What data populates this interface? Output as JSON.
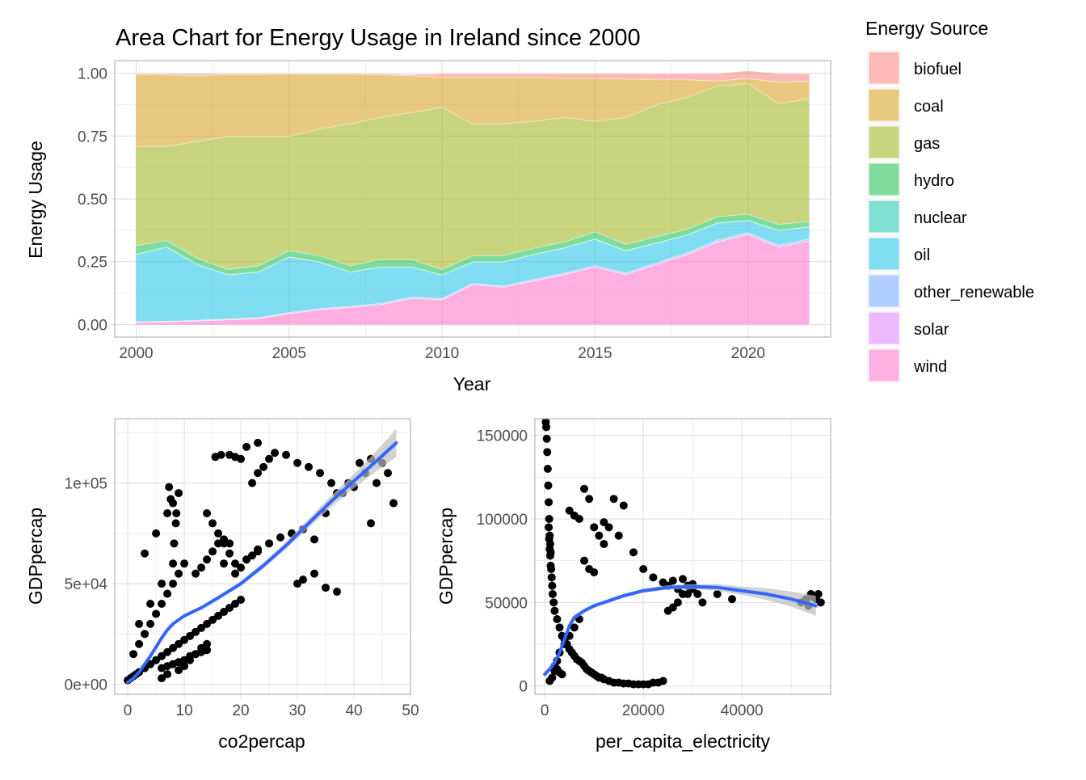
{
  "colors": {
    "panel_border": "#b3b3b3",
    "grid_major": "#dedede",
    "grid_minor": "#eeeeee",
    "tick_text": "#4d4d4d",
    "point": "#000000",
    "smooth_line": "#3366ff",
    "ribbon": "#bdbdbd"
  },
  "chart_data": [
    {
      "type": "area",
      "title": "Area Chart for Energy Usage in Ireland since 2000",
      "xlabel": "Year",
      "ylabel": "Energy Usage",
      "xlim": [
        1999.3,
        2022.7
      ],
      "ylim": [
        -0.05,
        1.05
      ],
      "x_ticks": [
        2000,
        2005,
        2010,
        2015,
        2020
      ],
      "x_tick_labels": [
        "2000",
        "2005",
        "2010",
        "2015",
        "2020"
      ],
      "y_ticks": [
        0,
        0.25,
        0.5,
        0.75,
        1.0
      ],
      "y_tick_labels": [
        "0.00",
        "0.25",
        "0.50",
        "0.75",
        "1.00"
      ],
      "stacked": true,
      "grid": true,
      "legend": {
        "title": "Energy Source",
        "placement": "right",
        "entries": [
          {
            "label": "biofuel",
            "color": "#f8766d"
          },
          {
            "label": "coal",
            "color": "#d39200"
          },
          {
            "label": "gas",
            "color": "#93aa00"
          },
          {
            "label": "hydro",
            "color": "#00ba38"
          },
          {
            "label": "nuclear",
            "color": "#00c19f"
          },
          {
            "label": "oil",
            "color": "#00b9e3"
          },
          {
            "label": "other_renewable",
            "color": "#619cff"
          },
          {
            "label": "solar",
            "color": "#db72fb"
          },
          {
            "label": "wind",
            "color": "#ff61c3"
          }
        ]
      },
      "x": [
        2000,
        2001,
        2002,
        2003,
        2004,
        2005,
        2006,
        2007,
        2008,
        2009,
        2010,
        2011,
        2012,
        2013,
        2014,
        2015,
        2016,
        2017,
        2018,
        2019,
        2020,
        2021,
        2022
      ],
      "series": [
        {
          "name": "wind",
          "color": "#ff61c3",
          "values": [
            0.01,
            0.012,
            0.015,
            0.02,
            0.025,
            0.045,
            0.06,
            0.07,
            0.08,
            0.105,
            0.1,
            0.16,
            0.15,
            0.175,
            0.2,
            0.23,
            0.2,
            0.24,
            0.28,
            0.33,
            0.36,
            0.31,
            0.335
          ]
        },
        {
          "name": "solar",
          "color": "#db72fb",
          "values": [
            0,
            0,
            0,
            0,
            0,
            0,
            0,
            0,
            0,
            0,
            0,
            0,
            0,
            0,
            0,
            0,
            0,
            0,
            0,
            0,
            0,
            0,
            0
          ]
        },
        {
          "name": "other_renewable",
          "color": "#619cff",
          "values": [
            0.002,
            0.002,
            0.003,
            0.003,
            0.003,
            0.004,
            0.004,
            0.004,
            0.005,
            0.005,
            0.005,
            0.005,
            0.005,
            0.005,
            0.006,
            0.006,
            0.006,
            0.006,
            0.007,
            0.007,
            0.007,
            0.007,
            0.007
          ]
        },
        {
          "name": "oil",
          "color": "#00b9e3",
          "values": [
            0.268,
            0.296,
            0.222,
            0.176,
            0.182,
            0.221,
            0.186,
            0.136,
            0.145,
            0.12,
            0.093,
            0.085,
            0.095,
            0.1,
            0.1,
            0.105,
            0.089,
            0.079,
            0.07,
            0.068,
            0.048,
            0.058,
            0.048
          ]
        },
        {
          "name": "nuclear",
          "color": "#00c19f",
          "values": [
            0,
            0,
            0,
            0,
            0,
            0,
            0,
            0,
            0,
            0,
            0,
            0,
            0,
            0,
            0,
            0,
            0,
            0,
            0,
            0,
            0,
            0,
            0
          ]
        },
        {
          "name": "hydro",
          "color": "#00ba38",
          "values": [
            0.035,
            0.025,
            0.025,
            0.021,
            0.025,
            0.025,
            0.025,
            0.025,
            0.03,
            0.03,
            0.022,
            0.025,
            0.025,
            0.025,
            0.024,
            0.029,
            0.025,
            0.025,
            0.023,
            0.025,
            0.025,
            0.025,
            0.02
          ]
        },
        {
          "name": "gas",
          "color": "#93aa00",
          "values": [
            0.395,
            0.375,
            0.465,
            0.53,
            0.515,
            0.455,
            0.505,
            0.565,
            0.565,
            0.585,
            0.645,
            0.525,
            0.525,
            0.505,
            0.495,
            0.44,
            0.505,
            0.525,
            0.525,
            0.52,
            0.52,
            0.48,
            0.49
          ]
        },
        {
          "name": "coal",
          "color": "#d39200",
          "values": [
            0.285,
            0.284,
            0.262,
            0.245,
            0.245,
            0.247,
            0.218,
            0.196,
            0.17,
            0.145,
            0.12,
            0.185,
            0.185,
            0.175,
            0.155,
            0.17,
            0.153,
            0.1,
            0.07,
            0.02,
            0.02,
            0.085,
            0.07
          ]
        },
        {
          "name": "biofuel",
          "color": "#f8766d",
          "values": [
            0.005,
            0.006,
            0.008,
            0.005,
            0.005,
            0.003,
            0.002,
            0.004,
            0.005,
            0.005,
            0.015,
            0.015,
            0.015,
            0.015,
            0.02,
            0.02,
            0.022,
            0.025,
            0.025,
            0.03,
            0.03,
            0.035,
            0.03
          ]
        }
      ]
    },
    {
      "type": "scatter",
      "xlabel": "co2percap",
      "ylabel": "GDPpercap",
      "xlim": [
        -2.3,
        50
      ],
      "ylim": [
        -5000,
        132000
      ],
      "x_ticks": [
        0,
        10,
        20,
        30,
        40,
        50
      ],
      "x_tick_labels": [
        "0",
        "10",
        "20",
        "30",
        "40",
        "50"
      ],
      "y_ticks": [
        0,
        50000,
        100000
      ],
      "y_tick_labels": [
        "0e+00",
        "5e+04",
        "1e+05"
      ],
      "grid": true,
      "smooth": {
        "x": [
          0,
          1,
          2,
          3,
          4,
          5,
          6,
          7,
          8,
          10,
          13,
          16,
          20,
          24,
          28,
          32,
          36,
          40,
          44,
          47.5
        ],
        "y": [
          1000,
          3000,
          6000,
          10000,
          14000,
          18500,
          23000,
          27000,
          30000,
          34000,
          38000,
          43000,
          50000,
          59000,
          69000,
          80000,
          91000,
          101000,
          111000,
          120000
        ],
        "se_halfwidth": [
          800,
          600,
          500,
          500,
          500,
          500,
          600,
          600,
          700,
          800,
          900,
          1000,
          1200,
          1500,
          1800,
          2200,
          2800,
          3500,
          5000,
          7000
        ]
      },
      "points": {
        "x": [
          0,
          0.5,
          1,
          1.5,
          2,
          3,
          4,
          5,
          6,
          7,
          8,
          9,
          10,
          11,
          12,
          13,
          14,
          15,
          16,
          17,
          18,
          19,
          20,
          1,
          2,
          3,
          4,
          5,
          6,
          7,
          8,
          9,
          10,
          3,
          5,
          7,
          8,
          9,
          2,
          4,
          6,
          8,
          8.2,
          8.5,
          7.6,
          7.3,
          8.6,
          6,
          7,
          9,
          10,
          11,
          12,
          13,
          14,
          12,
          13,
          14,
          15,
          16,
          17,
          18,
          17,
          19,
          21,
          23,
          25,
          27,
          29,
          31,
          33,
          35,
          37,
          39,
          41,
          43,
          44,
          46,
          14,
          15,
          16,
          17,
          18,
          19,
          20,
          21,
          22,
          23,
          22,
          23,
          24,
          25,
          26,
          28,
          30,
          32,
          34,
          36,
          38,
          40,
          42,
          45,
          47,
          43,
          30,
          31,
          33,
          35,
          37,
          15.5,
          16.5,
          18,
          19,
          20,
          21,
          23,
          6,
          7,
          8,
          9,
          10,
          11,
          12,
          13,
          14
        ],
        "y": [
          2000,
          3000,
          4000,
          5000,
          6000,
          8000,
          10000,
          12000,
          14000,
          16000,
          18000,
          20000,
          22000,
          24000,
          26000,
          28000,
          30000,
          32000,
          34000,
          36000,
          38000,
          40000,
          42000,
          15000,
          20000,
          25000,
          30000,
          35000,
          40000,
          45000,
          50000,
          55000,
          60000,
          65000,
          75000,
          85000,
          90000,
          95000,
          30000,
          40000,
          50000,
          60000,
          70000,
          80000,
          92000,
          98000,
          85000,
          3000,
          5000,
          7000,
          9000,
          12000,
          15000,
          18000,
          20000,
          55000,
          58000,
          62000,
          66000,
          70000,
          72000,
          70000,
          60000,
          55000,
          62000,
          66000,
          70000,
          73000,
          75000,
          77000,
          72000,
          85000,
          95000,
          100000,
          110000,
          112000,
          100000,
          105000,
          85000,
          80000,
          75000,
          70000,
          65000,
          60000,
          58000,
          62000,
          64000,
          67000,
          100000,
          105000,
          108000,
          112000,
          115000,
          114000,
          110000,
          108000,
          105000,
          100000,
          95000,
          98000,
          105000,
          110000,
          90000,
          80000,
          50000,
          52000,
          55000,
          48000,
          46000,
          113000,
          114000,
          114000,
          113000,
          112000,
          118000,
          120000,
          8000,
          9000,
          10000,
          11000,
          12000,
          14000,
          15000,
          16000,
          17000
        ]
      }
    },
    {
      "type": "scatter",
      "xlabel": "per_capita_electricity",
      "ylabel": "GDPpercap",
      "xlim": [
        -2000,
        58000
      ],
      "ylim": [
        -5000,
        160000
      ],
      "x_ticks": [
        0,
        20000,
        40000
      ],
      "x_tick_labels": [
        "0",
        "20000",
        "40000"
      ],
      "y_ticks": [
        0,
        50000,
        100000,
        150000
      ],
      "y_tick_labels": [
        "0",
        "50000",
        "100000",
        "150000"
      ],
      "grid": true,
      "smooth": {
        "x": [
          0,
          1000,
          2000,
          3000,
          4000,
          5000,
          6000,
          8000,
          10000,
          13000,
          16000,
          20000,
          25000,
          30000,
          35000,
          40000,
          45000,
          50000,
          55000
        ],
        "y": [
          7000,
          10000,
          14000,
          20000,
          28000,
          36000,
          41000,
          45000,
          48000,
          51000,
          54000,
          57000,
          59000,
          59500,
          59000,
          57000,
          55000,
          52000,
          48000
        ],
        "se_halfwidth": [
          2000,
          1500,
          1500,
          1500,
          1500,
          1500,
          1500,
          1200,
          1200,
          1200,
          1200,
          1200,
          1300,
          1500,
          2000,
          2500,
          3500,
          4500,
          6000
        ]
      },
      "points": {
        "x": [
          200,
          300,
          400,
          500,
          600,
          700,
          800,
          900,
          1000,
          1100,
          1200,
          800,
          900,
          1000,
          1100,
          1200,
          1300,
          1400,
          1500,
          1600,
          1800,
          2000,
          2500,
          3000,
          3500,
          4000,
          4500,
          5000,
          5500,
          6000,
          6500,
          7000,
          7500,
          8000,
          8500,
          9000,
          9500,
          10000,
          10500,
          11000,
          11500,
          12000,
          13000,
          14000,
          15000,
          16000,
          17000,
          18000,
          19000,
          20000,
          21000,
          22000,
          23000,
          24000,
          25000,
          26000,
          27000,
          28000,
          29000,
          30000,
          31000,
          32000,
          24000,
          26000,
          28000,
          30000,
          35000,
          38000,
          52000,
          53000,
          54000,
          55000,
          56000,
          53500,
          54500,
          55500,
          2000,
          2500,
          3000,
          3500,
          8000,
          9000,
          10000,
          11000,
          12000,
          8000,
          9000,
          10000,
          5000,
          6000,
          7000,
          12000,
          13000,
          15000,
          14000,
          16000,
          18000,
          20000,
          22000,
          25000,
          27000,
          29000,
          1000,
          1500,
          2000,
          2500,
          3000,
          4000,
          5000,
          6000,
          7000
        ],
        "y": [
          158000,
          155000,
          148000,
          140000,
          130000,
          120000,
          110000,
          100000,
          90000,
          85000,
          80000,
          95000,
          88000,
          82000,
          78000,
          72000,
          70000,
          65000,
          60000,
          55000,
          50000,
          45000,
          40000,
          35000,
          30000,
          28000,
          25000,
          22000,
          20000,
          18000,
          16000,
          15000,
          14000,
          12000,
          10000,
          9000,
          8000,
          7000,
          6000,
          5000,
          5000,
          4000,
          3000,
          2000,
          2000,
          1500,
          1500,
          1000,
          1000,
          1000,
          1000,
          2000,
          2000,
          3000,
          45000,
          47000,
          50000,
          55000,
          60000,
          58000,
          55000,
          50000,
          62000,
          63000,
          64000,
          61000,
          55000,
          52000,
          50000,
          52000,
          55000,
          52000,
          50000,
          48000,
          53000,
          55000,
          12000,
          10000,
          8000,
          7000,
          118000,
          112000,
          95000,
          90000,
          85000,
          75000,
          70000,
          68000,
          105000,
          102000,
          100000,
          98000,
          95000,
          90000,
          112000,
          108000,
          80000,
          70000,
          65000,
          60000,
          58000,
          55000,
          3000,
          5000,
          9000,
          15000,
          20000,
          25000,
          30000,
          35000,
          40000
        ]
      }
    }
  ]
}
